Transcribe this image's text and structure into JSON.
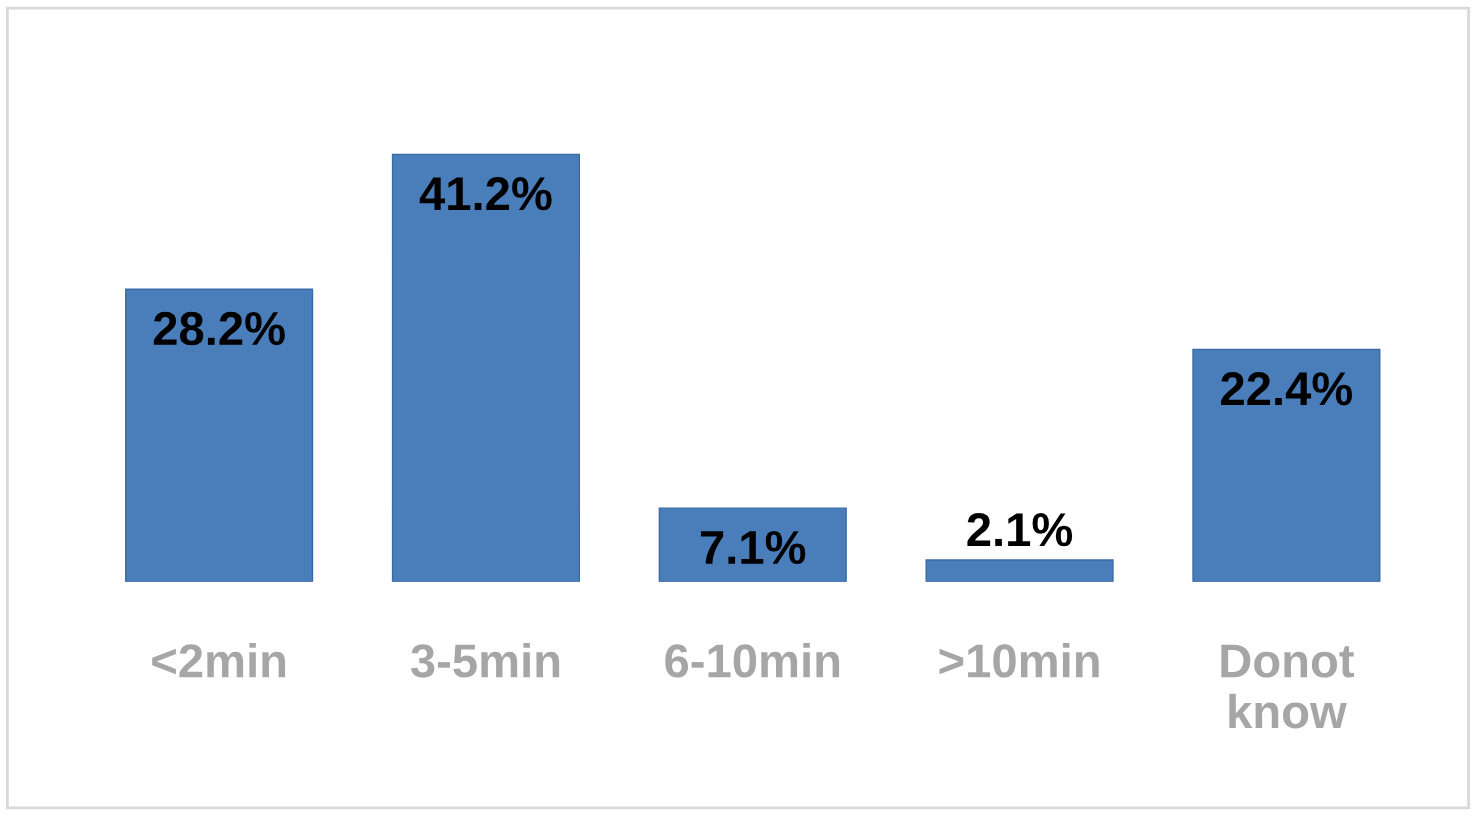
{
  "chart_data": {
    "type": "bar",
    "categories": [
      "<2min",
      "3-5min",
      "6-10min",
      ">10min",
      "Donot\nknow"
    ],
    "values": [
      28.2,
      41.2,
      7.1,
      2.1,
      22.4
    ],
    "value_labels": [
      "28.2%",
      "41.2%",
      "7.1%",
      "2.1%",
      "22.4%"
    ],
    "color": "#4a7ebb",
    "grid": false,
    "legend": false
  }
}
